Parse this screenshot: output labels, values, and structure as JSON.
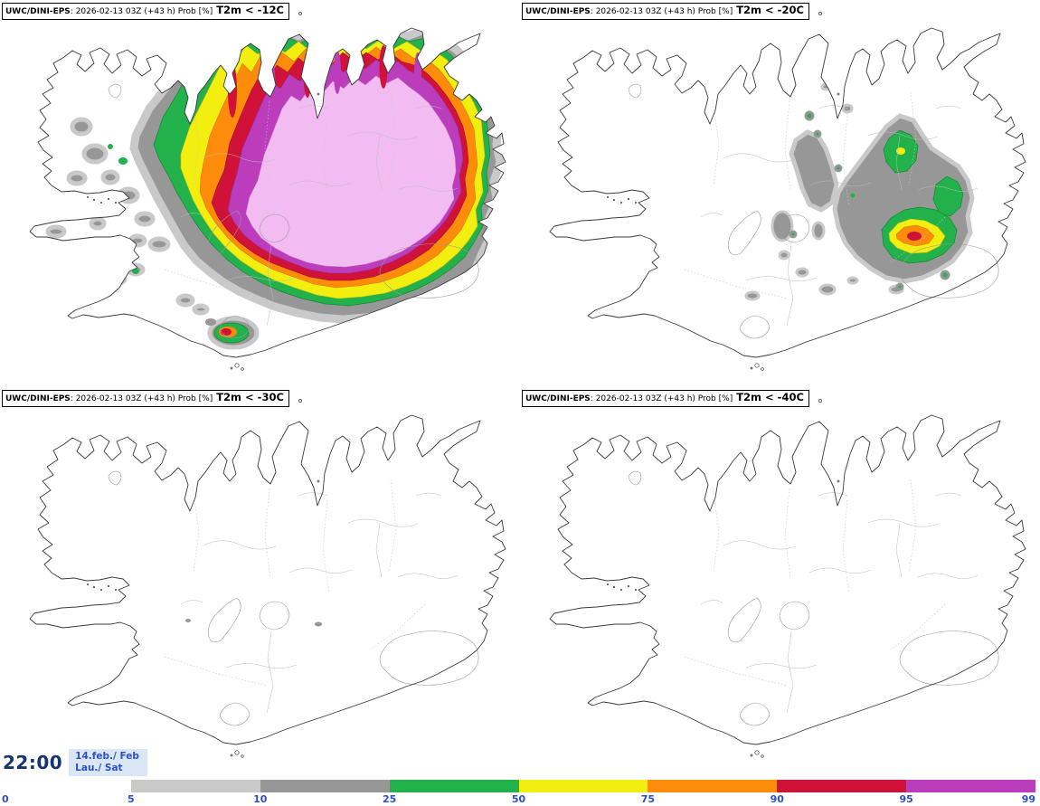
{
  "panels": [
    {
      "model": "UWC/DINI-EPS",
      "run_info": ": 2026-02-13 03Z (+43 h) Prob [%]",
      "threshold": "T2m < -12C"
    },
    {
      "model": "UWC/DINI-EPS",
      "run_info": ": 2026-02-13 03Z (+43 h) Prob [%]",
      "threshold": "T2m < -20C"
    },
    {
      "model": "UWC/DINI-EPS",
      "run_info": ": 2026-02-13 03Z (+43 h) Prob [%]",
      "threshold": "T2m < -30C"
    },
    {
      "model": "UWC/DINI-EPS",
      "run_info": ": 2026-02-13 03Z (+43 h) Prob [%]",
      "threshold": "T2m < -40C"
    }
  ],
  "footer": {
    "valid_time": "22:00",
    "valid_date": "14.feb./ Feb",
    "valid_day": "Lau./ Sat"
  },
  "legend": {
    "tick_labels": [
      "0",
      "5",
      "10",
      "25",
      "50",
      "75",
      "90",
      "95",
      "99"
    ],
    "bar_segments": [
      {
        "label": "0-5",
        "color": "#ffffff"
      },
      {
        "label": "5-10",
        "color": "#c9c9c9"
      },
      {
        "label": "10-25",
        "color": "#979797"
      },
      {
        "label": "25-50",
        "color": "#23b14b"
      },
      {
        "label": "50-75",
        "color": "#f1ee10"
      },
      {
        "label": "75-90",
        "color": "#fd8c0b"
      },
      {
        "label": "90-95",
        "color": "#d01138"
      },
      {
        "label": "95-99",
        "color": "#bb3dbb"
      }
    ],
    "label_color": "#2b50c8"
  },
  "colors": {
    "prob_5": "#c9c9c9",
    "prob_10": "#979797",
    "prob_25": "#23b14b",
    "prob_50": "#f1ee10",
    "prob_75": "#fd8c0b",
    "prob_90": "#d01138",
    "prob_95": "#bb3dbb",
    "prob_99": "#f2bcf2",
    "time_color": "#16356e",
    "date_color": "#2b50c8"
  }
}
